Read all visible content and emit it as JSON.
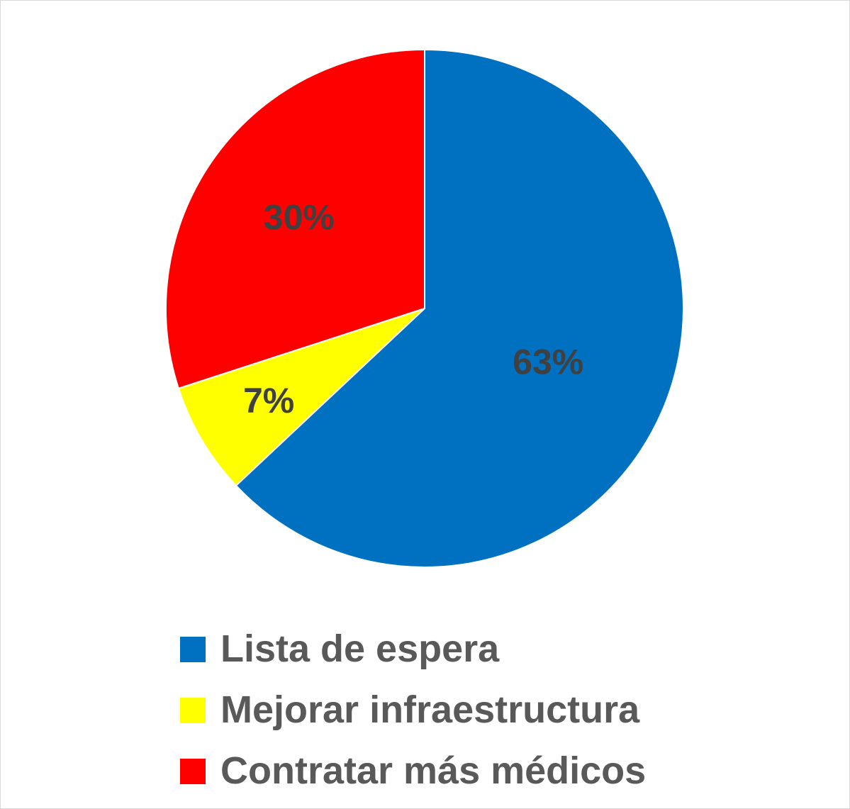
{
  "chart_data": {
    "type": "pie",
    "categories": [
      "Lista de espera",
      "Mejorar infraestructura",
      "Contratar más médicos"
    ],
    "values": [
      63,
      7,
      30
    ],
    "data_labels": [
      "63%",
      "7%",
      "30%"
    ],
    "colors": [
      "#0070C0",
      "#FFFF00",
      "#FF0000"
    ],
    "legend_placement": "bottom",
    "start_angle": "top (12 o'clock), clockwise"
  },
  "legend": {
    "items": [
      {
        "label": "Lista de espera",
        "color": "#0070C0"
      },
      {
        "label": "Mejorar infraestructura",
        "color": "#FFFF00"
      },
      {
        "label": "Contratar más médicos",
        "color": "#FF0000"
      }
    ]
  }
}
